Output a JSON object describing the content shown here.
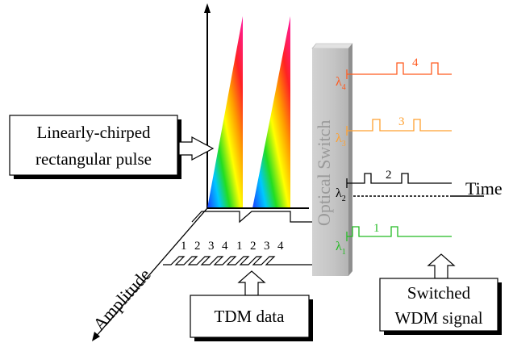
{
  "callouts": {
    "pulse_line1": "Linearly-chirped",
    "pulse_line2": "rectangular pulse",
    "tdm": "TDM data",
    "wdm_line1": "Switched",
    "wdm_line2": "WDM signal"
  },
  "axes": {
    "time": "Time",
    "amplitude": "Amplitude"
  },
  "switch_label": "Optical Switch",
  "tdm_sequence": [
    "1",
    "2",
    "3",
    "4",
    "1",
    "2",
    "3",
    "4"
  ],
  "channels": [
    {
      "wavelength": "λ",
      "sub": "4",
      "slot": "4",
      "color": "#ff5a1f"
    },
    {
      "wavelength": "λ",
      "sub": "3",
      "slot": "3",
      "color": "#ffa030"
    },
    {
      "wavelength": "λ",
      "sub": "2",
      "slot": "2",
      "color": "#000000"
    },
    {
      "wavelength": "λ",
      "sub": "1",
      "slot": "1",
      "color": "#22bb22"
    }
  ],
  "colors": {
    "switch_face": "#bdbdbd",
    "switch_side": "#8f8f8f",
    "switch_text": "#9a9a9a"
  }
}
